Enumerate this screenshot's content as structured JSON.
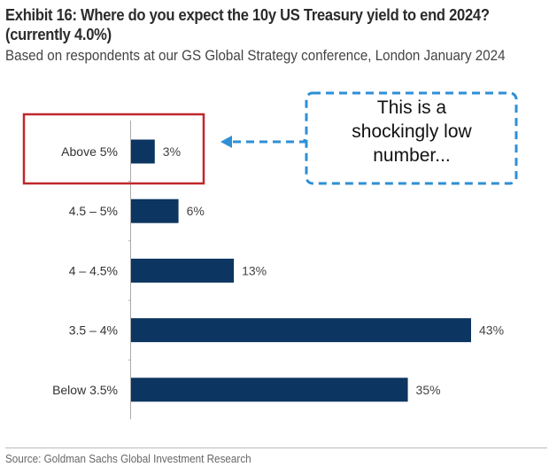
{
  "header": {
    "title": "Exhibit 16: Where do you expect the 10y US Treasury yield to end 2024? (currently 4.0%)",
    "subtitle": "Based on respondents at our GS Global Strategy conference, London January 2024"
  },
  "chart_data": {
    "type": "bar",
    "orientation": "horizontal",
    "title": "Exhibit 16: Where do you expect the 10y US Treasury yield to end 2024? (currently 4.0%)",
    "subtitle": "Based on respondents at our GS Global Strategy conference, London January 2024",
    "categories": [
      "Above 5%",
      "4.5 – 5%",
      "4 – 4.5%",
      "3.5 – 4%",
      "Below 3.5%"
    ],
    "values": [
      3,
      6,
      13,
      43,
      35
    ],
    "value_labels": [
      "3%",
      "6%",
      "13%",
      "43%",
      "35%"
    ],
    "unit": "%",
    "xlim": [
      0,
      43
    ],
    "grid": false,
    "bar_color": "#0d3561",
    "xlabel": "",
    "ylabel": ""
  },
  "annotation": {
    "lines": [
      "This is a",
      "shockingly low",
      "number..."
    ],
    "highlight_category": "Above 5%",
    "highlight_color": "#c0272d",
    "callout_color": "#2e8fd6"
  },
  "footer": {
    "source": "Source: Goldman Sachs Global Investment Research"
  }
}
